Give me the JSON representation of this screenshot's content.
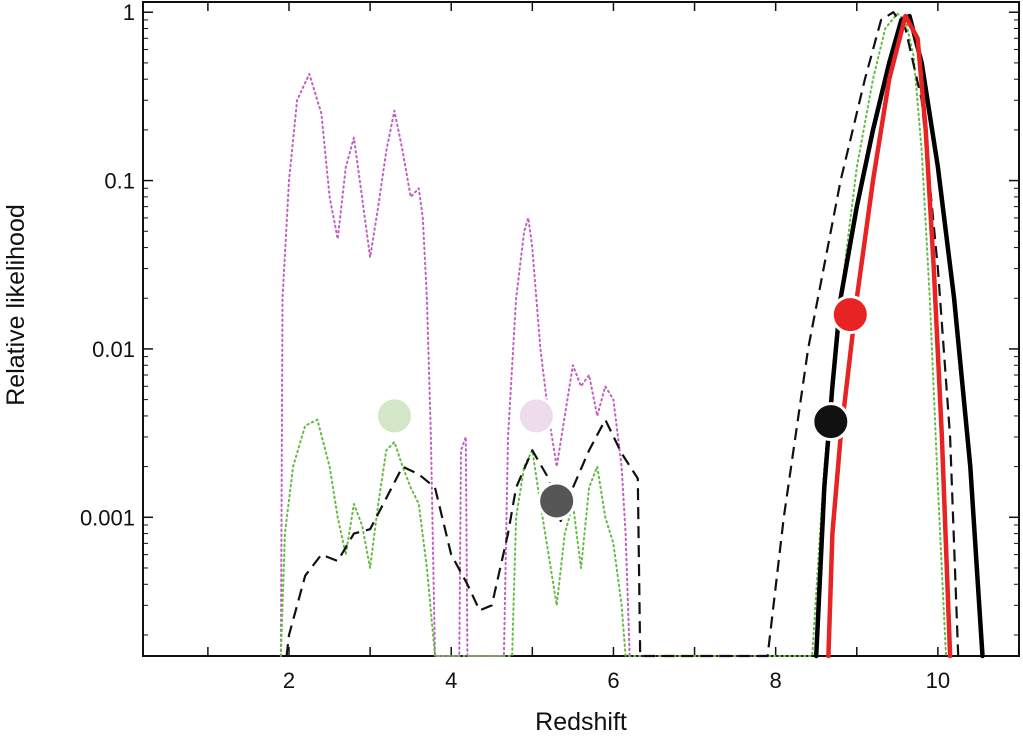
{
  "chart_data": {
    "type": "line",
    "xlabel": "Redshift",
    "ylabel": "Relative likelihood",
    "y_scale": "log",
    "xlim": [
      0.2,
      11
    ],
    "ylim": [
      0.00015,
      1.15
    ],
    "x_ticks": [
      1,
      2,
      3,
      4,
      5,
      6,
      7,
      8,
      9,
      10
    ],
    "x_tick_labels": [
      {
        "value": 2,
        "label": "2"
      },
      {
        "value": 4,
        "label": "4"
      },
      {
        "value": 6,
        "label": "6"
      },
      {
        "value": 8,
        "label": "8"
      },
      {
        "value": 10,
        "label": "10"
      }
    ],
    "y_ticks": [
      {
        "value": 1,
        "label": "1"
      },
      {
        "value": 0.1,
        "label": "0.1"
      },
      {
        "value": 0.01,
        "label": "0.01"
      },
      {
        "value": 0.001,
        "label": "0.001"
      }
    ],
    "grid": false,
    "legend": "none",
    "series": [
      {
        "color": "#c060c0",
        "style": "dotted",
        "width": 2,
        "points": [
          [
            1.9,
            0.00015
          ],
          [
            1.92,
            0.02
          ],
          [
            2.0,
            0.1
          ],
          [
            2.1,
            0.3
          ],
          [
            2.25,
            0.43
          ],
          [
            2.4,
            0.25
          ],
          [
            2.5,
            0.08
          ],
          [
            2.6,
            0.045
          ],
          [
            2.7,
            0.12
          ],
          [
            2.8,
            0.18
          ],
          [
            2.9,
            0.08
          ],
          [
            3.0,
            0.035
          ],
          [
            3.1,
            0.07
          ],
          [
            3.2,
            0.15
          ],
          [
            3.3,
            0.26
          ],
          [
            3.4,
            0.15
          ],
          [
            3.5,
            0.08
          ],
          [
            3.6,
            0.09
          ],
          [
            3.65,
            0.06
          ],
          [
            3.7,
            0.02
          ],
          [
            3.75,
            0.003
          ],
          [
            3.8,
            0.00015
          ],
          [
            4.1,
            0.00015
          ],
          [
            4.12,
            0.0025
          ],
          [
            4.18,
            0.003
          ],
          [
            4.2,
            0.00015
          ],
          [
            4.65,
            0.00015
          ],
          [
            4.7,
            0.003
          ],
          [
            4.8,
            0.02
          ],
          [
            4.9,
            0.05
          ],
          [
            4.95,
            0.06
          ],
          [
            5.0,
            0.04
          ],
          [
            5.1,
            0.01
          ],
          [
            5.2,
            0.004
          ],
          [
            5.3,
            0.002
          ],
          [
            5.4,
            0.004
          ],
          [
            5.5,
            0.008
          ],
          [
            5.6,
            0.006
          ],
          [
            5.7,
            0.007
          ],
          [
            5.8,
            0.004
          ],
          [
            5.9,
            0.006
          ],
          [
            6.0,
            0.005
          ],
          [
            6.1,
            0.002
          ],
          [
            6.15,
            0.0008
          ],
          [
            6.2,
            0.00015
          ]
        ]
      },
      {
        "color": "#66bb44",
        "style": "dotted",
        "width": 2,
        "points": [
          [
            1.9,
            0.00015
          ],
          [
            1.95,
            0.0008
          ],
          [
            2.05,
            0.002
          ],
          [
            2.2,
            0.0035
          ],
          [
            2.35,
            0.0038
          ],
          [
            2.5,
            0.002
          ],
          [
            2.6,
            0.001
          ],
          [
            2.7,
            0.0006
          ],
          [
            2.8,
            0.0012
          ],
          [
            2.9,
            0.0009
          ],
          [
            3.0,
            0.0005
          ],
          [
            3.1,
            0.0012
          ],
          [
            3.2,
            0.0025
          ],
          [
            3.3,
            0.0028
          ],
          [
            3.4,
            0.002
          ],
          [
            3.5,
            0.0015
          ],
          [
            3.6,
            0.0012
          ],
          [
            3.7,
            0.0005
          ],
          [
            3.8,
            0.00015
          ],
          [
            4.75,
            0.00015
          ],
          [
            4.8,
            0.001
          ],
          [
            4.9,
            0.002
          ],
          [
            5.0,
            0.0025
          ],
          [
            5.1,
            0.0012
          ],
          [
            5.2,
            0.0006
          ],
          [
            5.3,
            0.0003
          ],
          [
            5.4,
            0.0008
          ],
          [
            5.5,
            0.0012
          ],
          [
            5.6,
            0.0005
          ],
          [
            5.7,
            0.0015
          ],
          [
            5.8,
            0.002
          ],
          [
            5.9,
            0.001
          ],
          [
            6.0,
            0.0007
          ],
          [
            6.1,
            0.0003
          ],
          [
            6.15,
            0.00015
          ],
          [
            8.45,
            0.00015
          ],
          [
            8.6,
            0.002
          ],
          [
            8.8,
            0.02
          ],
          [
            9.0,
            0.12
          ],
          [
            9.2,
            0.4
          ],
          [
            9.35,
            0.8
          ],
          [
            9.5,
            0.98
          ],
          [
            9.6,
            0.9
          ],
          [
            9.7,
            0.55
          ],
          [
            9.8,
            0.15
          ],
          [
            9.9,
            0.02
          ],
          [
            10.0,
            0.0015
          ],
          [
            10.1,
            0.00015
          ]
        ]
      },
      {
        "color": "#111111",
        "style": "dashed",
        "width": 2.2,
        "points": [
          [
            1.97,
            0.00015
          ],
          [
            2.0,
            0.0002
          ],
          [
            2.2,
            0.00045
          ],
          [
            2.4,
            0.0006
          ],
          [
            2.6,
            0.00055
          ],
          [
            2.8,
            0.0008
          ],
          [
            3.0,
            0.00085
          ],
          [
            3.2,
            0.0013
          ],
          [
            3.4,
            0.002
          ],
          [
            3.6,
            0.0018
          ],
          [
            3.8,
            0.0015
          ],
          [
            4.0,
            0.0006
          ],
          [
            4.2,
            0.0004
          ],
          [
            4.35,
            0.00028
          ],
          [
            4.5,
            0.0003
          ],
          [
            4.7,
            0.0008
          ],
          [
            4.8,
            0.0015
          ],
          [
            5.0,
            0.0025
          ],
          [
            5.2,
            0.0017
          ],
          [
            5.35,
            0.00095
          ],
          [
            5.5,
            0.0015
          ],
          [
            5.7,
            0.0025
          ],
          [
            5.9,
            0.0038
          ],
          [
            6.1,
            0.0024
          ],
          [
            6.3,
            0.0017
          ],
          [
            6.33,
            0.00015
          ],
          [
            7.9,
            0.00015
          ],
          [
            8.1,
            0.001
          ],
          [
            8.4,
            0.01
          ],
          [
            8.8,
            0.1
          ],
          [
            9.1,
            0.4
          ],
          [
            9.3,
            0.9
          ],
          [
            9.45,
            1.0
          ],
          [
            9.6,
            0.8
          ],
          [
            9.8,
            0.3
          ],
          [
            10.0,
            0.03
          ],
          [
            10.15,
            0.003
          ],
          [
            10.25,
            0.00015
          ]
        ]
      },
      {
        "color": "#000000",
        "style": "solid",
        "width": 4.5,
        "points": [
          [
            8.5,
            0.00015
          ],
          [
            8.6,
            0.0015
          ],
          [
            8.7,
            0.006
          ],
          [
            8.8,
            0.02
          ],
          [
            9.0,
            0.07
          ],
          [
            9.2,
            0.2
          ],
          [
            9.4,
            0.5
          ],
          [
            9.55,
            0.9
          ],
          [
            9.65,
            0.95
          ],
          [
            9.8,
            0.5
          ],
          [
            10.0,
            0.12
          ],
          [
            10.2,
            0.02
          ],
          [
            10.4,
            0.002
          ],
          [
            10.55,
            0.00015
          ]
        ]
      },
      {
        "color": "#e82323",
        "style": "solid",
        "width": 4.5,
        "points": [
          [
            8.65,
            0.00015
          ],
          [
            8.7,
            0.0008
          ],
          [
            8.8,
            0.003
          ],
          [
            9.0,
            0.02
          ],
          [
            9.2,
            0.1
          ],
          [
            9.4,
            0.4
          ],
          [
            9.6,
            0.95
          ],
          [
            9.75,
            0.7
          ],
          [
            9.85,
            0.2
          ],
          [
            9.95,
            0.03
          ],
          [
            10.05,
            0.003
          ],
          [
            10.15,
            0.00015
          ]
        ]
      }
    ],
    "markers": [
      {
        "x": 3.3,
        "y": 0.004,
        "color": "#d3e6c8"
      },
      {
        "x": 5.05,
        "y": 0.004,
        "color": "#ecdcec"
      },
      {
        "x": 5.3,
        "y": 0.00125,
        "color": "#565656"
      },
      {
        "x": 8.92,
        "y": 0.016,
        "color": "#e82323"
      },
      {
        "x": 8.68,
        "y": 0.0037,
        "color": "#111111"
      }
    ]
  }
}
